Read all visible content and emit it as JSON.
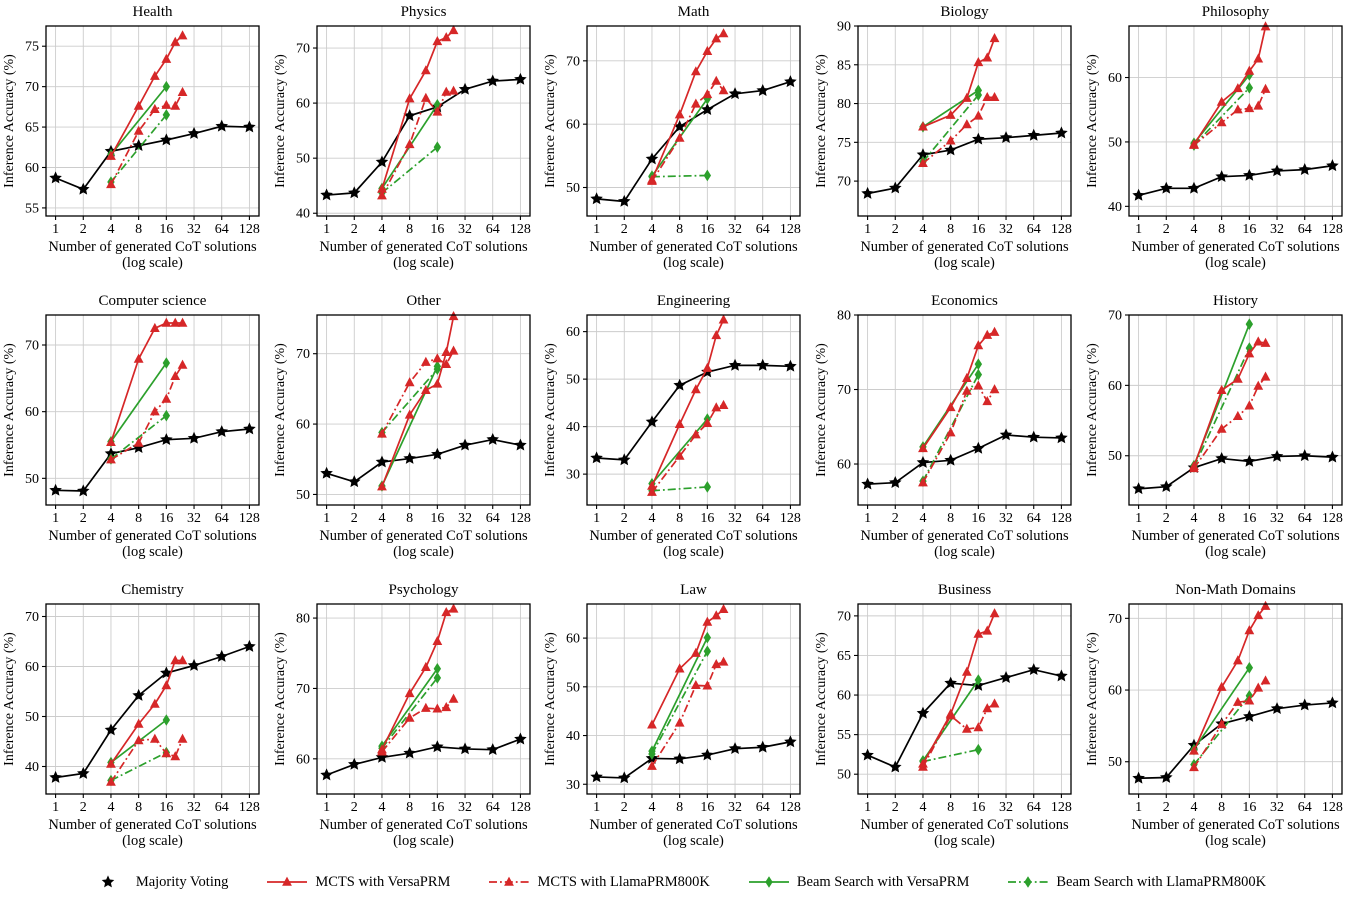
{
  "figure": {
    "background": "#ffffff",
    "grid_color": "#cccccc",
    "axis_color": "#000000",
    "red": "#d62728",
    "green": "#2ca02c",
    "black": "#000000"
  },
  "axes": {
    "xlabel_line1": "Number of generated CoT solutions",
    "xlabel_line2": "(log scale)",
    "ylabel": "Inference Accuracy (%)",
    "xticks": [
      1,
      2,
      4,
      8,
      16,
      32,
      64,
      128
    ],
    "x_scale": "log2",
    "grid": true,
    "x_values": {
      "majority": [
        1,
        2,
        4,
        8,
        16,
        32,
        64,
        128
      ],
      "mcts": [
        4,
        8,
        12,
        16,
        20,
        24
      ],
      "beam": [
        4,
        16
      ]
    }
  },
  "series_meta": [
    {
      "key": "majority",
      "label": "Majority Voting",
      "color": "#000000",
      "marker": "star",
      "linestyle": "solid",
      "x": "majority"
    },
    {
      "key": "mcts_versa",
      "label": "MCTS with VersaPRM",
      "color": "#d62728",
      "marker": "triangle",
      "linestyle": "solid",
      "x": "mcts"
    },
    {
      "key": "mcts_llama",
      "label": "MCTS with LlamaPRM800K",
      "color": "#d62728",
      "marker": "triangle",
      "linestyle": "dashdot",
      "x": "mcts"
    },
    {
      "key": "beam_versa",
      "label": "Beam Search with VersaPRM",
      "color": "#2ca02c",
      "marker": "diamond",
      "linestyle": "solid",
      "x": "beam"
    },
    {
      "key": "beam_llama",
      "label": "Beam Search with LlamaPRM800K",
      "color": "#2ca02c",
      "marker": "diamond",
      "linestyle": "dashdot",
      "x": "beam"
    }
  ],
  "chart_data": [
    {
      "type": "line",
      "title": "Health",
      "ylim": [
        54,
        77.5
      ],
      "yticks": [
        55,
        60,
        65,
        70,
        75
      ],
      "series": {
        "majority": [
          58.7,
          57.3,
          62.0,
          62.7,
          63.4,
          64.2,
          65.1,
          65.0
        ],
        "mcts_versa": [
          61.4,
          67.6,
          71.3,
          73.4,
          75.5,
          76.3
        ],
        "mcts_llama": [
          57.9,
          64.5,
          67.2,
          67.7,
          67.6,
          69.3
        ],
        "beam_versa": [
          61.6,
          70.0
        ],
        "beam_llama": [
          58.2,
          66.5
        ]
      }
    },
    {
      "type": "line",
      "title": "Physics",
      "ylim": [
        39.5,
        74
      ],
      "yticks": [
        40,
        50,
        60,
        70
      ],
      "series": {
        "majority": [
          43.3,
          43.7,
          49.3,
          57.7,
          59.3,
          62.5,
          64.0,
          64.3
        ],
        "mcts_versa": [
          44.4,
          60.8,
          65.9,
          71.2,
          71.9,
          73.2
        ],
        "mcts_llama": [
          43.2,
          52.5,
          60.9,
          58.4,
          62.0,
          62.2
        ],
        "beam_versa": [
          44.5,
          59.7
        ],
        "beam_llama": [
          43.7,
          52.0
        ]
      }
    },
    {
      "type": "line",
      "title": "Math",
      "ylim": [
        45.5,
        75.5
      ],
      "yticks": [
        50,
        60,
        70
      ],
      "series": {
        "majority": [
          48.2,
          47.8,
          54.5,
          59.6,
          62.3,
          64.8,
          65.3,
          66.7
        ],
        "mcts_versa": [
          51.2,
          61.5,
          68.3,
          71.5,
          73.5,
          74.3
        ],
        "mcts_llama": [
          51.0,
          57.8,
          63.2,
          64.7,
          66.8,
          65.3
        ],
        "beam_versa": [
          51.8,
          64.0
        ],
        "beam_llama": [
          51.7,
          51.9
        ]
      }
    },
    {
      "type": "line",
      "title": "Biology",
      "ylim": [
        65.5,
        90
      ],
      "yticks": [
        70,
        75,
        80,
        85,
        90
      ],
      "series": {
        "majority": [
          68.4,
          69.1,
          73.4,
          74.0,
          75.4,
          75.6,
          75.9,
          76.2
        ],
        "mcts_versa": [
          77.0,
          78.5,
          80.7,
          85.3,
          85.9,
          88.4
        ],
        "mcts_llama": [
          72.3,
          75.2,
          77.3,
          78.4,
          80.8,
          80.8
        ],
        "beam_versa": [
          77.0,
          81.7
        ],
        "beam_llama": [
          72.5,
          81.1
        ]
      }
    },
    {
      "type": "line",
      "title": "Philosophy",
      "ylim": [
        38.5,
        68
      ],
      "yticks": [
        40,
        50,
        60
      ],
      "series": {
        "majority": [
          41.7,
          42.8,
          42.8,
          44.6,
          44.8,
          45.5,
          45.7,
          46.3
        ],
        "mcts_versa": [
          49.6,
          56.2,
          58.3,
          61.0,
          62.9,
          67.9
        ],
        "mcts_llama": [
          49.5,
          53.0,
          55.0,
          55.2,
          55.6,
          58.2
        ],
        "beam_versa": [
          49.8,
          60.4
        ],
        "beam_llama": [
          49.5,
          58.4
        ]
      }
    },
    {
      "type": "line",
      "title": "Computer science",
      "ylim": [
        46,
        74.5
      ],
      "yticks": [
        50,
        60,
        70
      ],
      "series": {
        "majority": [
          48.2,
          48.1,
          53.7,
          54.6,
          55.8,
          56.0,
          57.0,
          57.4
        ],
        "mcts_versa": [
          55.4,
          67.9,
          72.5,
          73.3,
          73.3,
          73.3
        ],
        "mcts_llama": [
          52.8,
          55.3,
          60.0,
          61.9,
          65.3,
          67.0
        ],
        "beam_versa": [
          55.5,
          67.3
        ],
        "beam_llama": [
          52.9,
          59.4
        ]
      }
    },
    {
      "type": "line",
      "title": "Other",
      "ylim": [
        48.5,
        75.5
      ],
      "yticks": [
        50,
        60,
        70
      ],
      "series": {
        "majority": [
          53.0,
          51.8,
          54.6,
          55.1,
          55.7,
          57.0,
          57.8,
          57.0
        ],
        "mcts_versa": [
          51.1,
          61.3,
          64.8,
          65.7,
          70.2,
          75.3
        ],
        "mcts_llama": [
          58.6,
          65.9,
          68.8,
          69.3,
          68.5,
          70.4
        ],
        "beam_versa": [
          51.2,
          68.2
        ],
        "beam_llama": [
          58.8,
          67.8
        ]
      }
    },
    {
      "type": "line",
      "title": "Engineering",
      "ylim": [
        23.5,
        63.5
      ],
      "yticks": [
        30,
        40,
        50,
        60
      ],
      "series": {
        "majority": [
          33.4,
          33.0,
          41.0,
          48.7,
          51.5,
          52.9,
          52.9,
          52.7
        ],
        "mcts_versa": [
          27.5,
          40.5,
          47.8,
          52.3,
          59.2,
          62.5
        ],
        "mcts_llama": [
          26.2,
          33.8,
          38.3,
          40.7,
          44.0,
          44.5
        ],
        "beam_versa": [
          28.0,
          41.6
        ],
        "beam_llama": [
          26.5,
          27.3
        ]
      }
    },
    {
      "type": "line",
      "title": "Economics",
      "ylim": [
        54.5,
        80
      ],
      "yticks": [
        60,
        70,
        80
      ],
      "series": {
        "majority": [
          57.3,
          57.5,
          60.2,
          60.5,
          62.1,
          63.9,
          63.6,
          63.5
        ],
        "mcts_versa": [
          62.1,
          67.6,
          71.5,
          75.9,
          77.3,
          77.7
        ],
        "mcts_llama": [
          57.5,
          64.2,
          69.8,
          70.5,
          68.4,
          70.0
        ],
        "beam_versa": [
          62.3,
          73.4
        ],
        "beam_llama": [
          57.7,
          72.0
        ]
      }
    },
    {
      "type": "line",
      "title": "History",
      "ylim": [
        43,
        70
      ],
      "yticks": [
        50,
        60,
        70
      ],
      "series": {
        "majority": [
          45.3,
          45.6,
          48.3,
          49.6,
          49.2,
          49.9,
          50.0,
          49.8
        ],
        "mcts_versa": [
          48.5,
          59.3,
          60.9,
          64.5,
          66.2,
          66.0
        ],
        "mcts_llama": [
          48.2,
          53.8,
          55.6,
          57.1,
          59.9,
          61.2
        ],
        "beam_versa": [
          48.6,
          68.7
        ],
        "beam_llama": [
          48.4,
          65.3
        ]
      }
    },
    {
      "type": "line",
      "title": "Chemistry",
      "ylim": [
        34.5,
        72.5
      ],
      "yticks": [
        40,
        50,
        60,
        70
      ],
      "series": {
        "majority": [
          37.8,
          38.6,
          47.3,
          54.2,
          58.7,
          60.2,
          62.0,
          64.0
        ],
        "mcts_versa": [
          40.5,
          48.5,
          52.5,
          56.2,
          61.2,
          61.2
        ],
        "mcts_llama": [
          36.9,
          45.2,
          45.5,
          42.6,
          42.0,
          45.5
        ],
        "beam_versa": [
          40.8,
          49.3
        ],
        "beam_llama": [
          37.2,
          42.8
        ]
      }
    },
    {
      "type": "line",
      "title": "Psychology",
      "ylim": [
        55,
        82
      ],
      "yticks": [
        60,
        70,
        80
      ],
      "series": {
        "majority": [
          57.7,
          59.2,
          60.2,
          60.8,
          61.7,
          61.4,
          61.3,
          62.8
        ],
        "mcts_versa": [
          61.3,
          69.3,
          73.0,
          76.7,
          80.8,
          81.3
        ],
        "mcts_llama": [
          61.0,
          65.8,
          67.2,
          67.1,
          67.3,
          68.5
        ],
        "beam_versa": [
          61.8,
          72.8
        ],
        "beam_llama": [
          61.5,
          71.5
        ]
      }
    },
    {
      "type": "line",
      "title": "Law",
      "ylim": [
        28,
        67
      ],
      "yticks": [
        30,
        40,
        50,
        60
      ],
      "series": {
        "majority": [
          31.5,
          31.3,
          35.3,
          35.2,
          36.0,
          37.3,
          37.6,
          38.7
        ],
        "mcts_versa": [
          42.2,
          53.7,
          56.9,
          63.3,
          64.6,
          65.9
        ],
        "mcts_llama": [
          33.7,
          42.6,
          50.3,
          50.2,
          54.6,
          55.1
        ],
        "beam_versa": [
          36.8,
          60.1
        ],
        "beam_llama": [
          36.2,
          57.3
        ]
      }
    },
    {
      "type": "line",
      "title": "Business",
      "ylim": [
        47.5,
        71.5
      ],
      "yticks": [
        50,
        55,
        60,
        65,
        70
      ],
      "series": {
        "majority": [
          52.4,
          50.9,
          57.7,
          61.5,
          61.2,
          62.2,
          63.2,
          62.4
        ],
        "mcts_versa": [
          51.3,
          57.6,
          62.9,
          67.7,
          68.1,
          70.3
        ],
        "mcts_llama": [
          50.9,
          57.4,
          55.7,
          55.9,
          58.3,
          58.9
        ],
        "beam_versa": [
          51.7,
          61.9
        ],
        "beam_llama": [
          51.6,
          53.1
        ]
      }
    },
    {
      "type": "line",
      "title": "Non-Math Domains",
      "ylim": [
        45.5,
        72
      ],
      "yticks": [
        50,
        60,
        70
      ],
      "series": {
        "majority": [
          47.7,
          47.8,
          52.3,
          55.3,
          56.3,
          57.4,
          57.9,
          58.2
        ],
        "mcts_versa": [
          51.5,
          60.4,
          64.1,
          68.3,
          70.4,
          71.7
        ],
        "mcts_llama": [
          49.2,
          55.2,
          58.3,
          58.5,
          60.3,
          61.3
        ],
        "beam_versa": [
          51.7,
          63.1
        ],
        "beam_llama": [
          49.6,
          59.2
        ]
      }
    }
  ]
}
